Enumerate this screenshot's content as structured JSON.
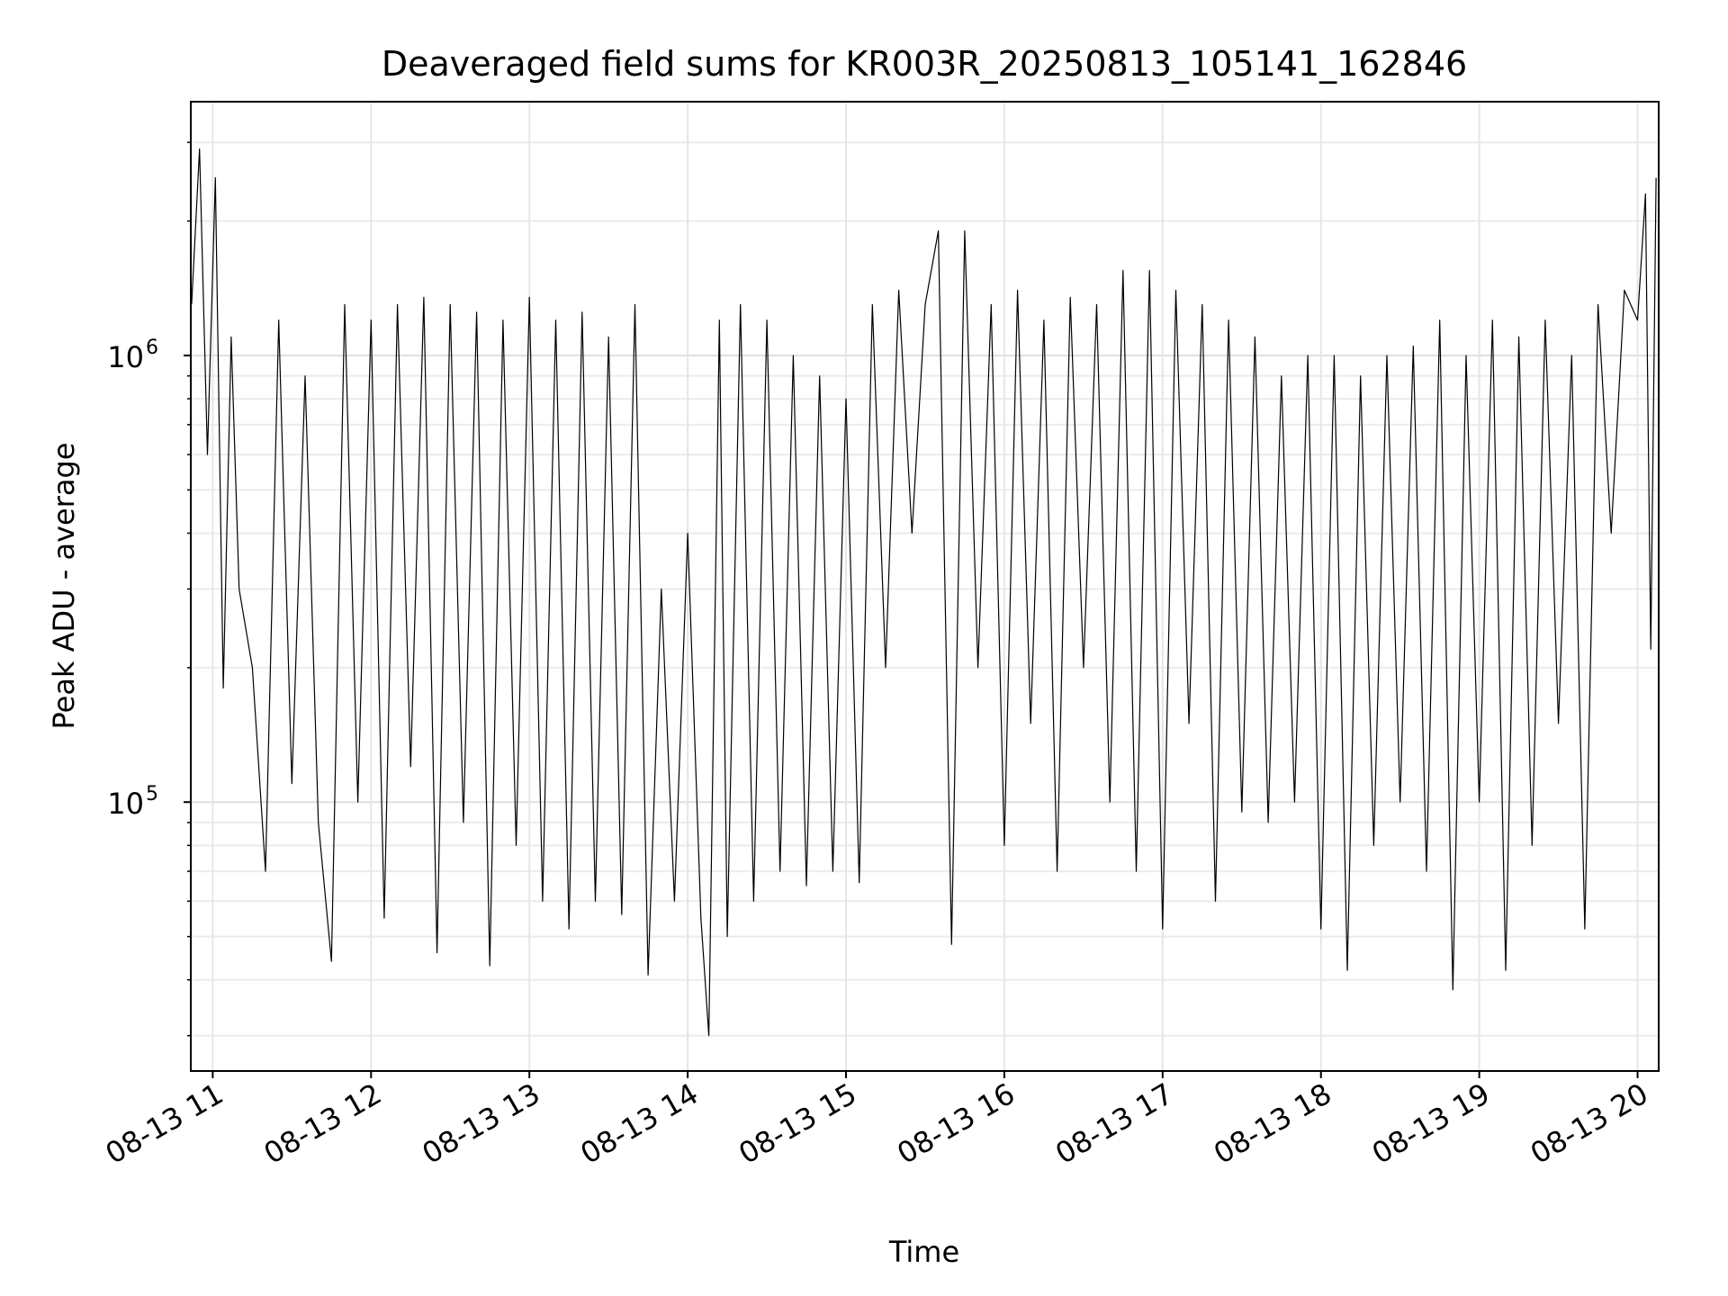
{
  "chart_data": {
    "type": "line",
    "title": "Deaveraged field sums for KR003R_20250813_105141_162846",
    "xlabel": "Time",
    "ylabel": "Peak ADU - average",
    "x_scale": "time",
    "y_scale": "log",
    "xlim": [
      "2025-08-13T10:51:41",
      "2025-08-13T20:08:00"
    ],
    "ylim": [
      25000,
      3700000
    ],
    "xticks": [
      "08-13 11",
      "08-13 12",
      "08-13 13",
      "08-13 14",
      "08-13 15",
      "08-13 16",
      "08-13 17",
      "08-13 18",
      "08-13 19",
      "08-13 20"
    ],
    "yticks": [
      {
        "label": "10",
        "exp": "5",
        "value": 100000
      },
      {
        "label": "10",
        "exp": "6",
        "value": 1000000
      }
    ],
    "grid": true,
    "line_color": "#000000",
    "series": [
      {
        "points": [
          [
            "2025-08-13T10:52:00",
            1300000
          ],
          [
            "2025-08-13T10:55:00",
            2900000
          ],
          [
            "2025-08-13T10:58:00",
            600000
          ],
          [
            "2025-08-13T11:01:00",
            2500000
          ],
          [
            "2025-08-13T11:04:00",
            180000
          ],
          [
            "2025-08-13T11:07:00",
            1100000
          ],
          [
            "2025-08-13T11:10:00",
            300000
          ],
          [
            "2025-08-13T11:15:00",
            200000
          ],
          [
            "2025-08-13T11:20:00",
            70000
          ],
          [
            "2025-08-13T11:25:00",
            1200000
          ],
          [
            "2025-08-13T11:30:00",
            110000
          ],
          [
            "2025-08-13T11:35:00",
            900000
          ],
          [
            "2025-08-13T11:40:00",
            90000
          ],
          [
            "2025-08-13T11:45:00",
            44000
          ],
          [
            "2025-08-13T11:50:00",
            1300000
          ],
          [
            "2025-08-13T11:55:00",
            100000
          ],
          [
            "2025-08-13T12:00:00",
            1200000
          ],
          [
            "2025-08-13T12:05:00",
            55000
          ],
          [
            "2025-08-13T12:10:00",
            1300000
          ],
          [
            "2025-08-13T12:15:00",
            120000
          ],
          [
            "2025-08-13T12:20:00",
            1350000
          ],
          [
            "2025-08-13T12:25:00",
            46000
          ],
          [
            "2025-08-13T12:30:00",
            1300000
          ],
          [
            "2025-08-13T12:35:00",
            90000
          ],
          [
            "2025-08-13T12:40:00",
            1250000
          ],
          [
            "2025-08-13T12:45:00",
            43000
          ],
          [
            "2025-08-13T12:50:00",
            1200000
          ],
          [
            "2025-08-13T12:55:00",
            80000
          ],
          [
            "2025-08-13T13:00:00",
            1350000
          ],
          [
            "2025-08-13T13:05:00",
            60000
          ],
          [
            "2025-08-13T13:10:00",
            1200000
          ],
          [
            "2025-08-13T13:15:00",
            52000
          ],
          [
            "2025-08-13T13:20:00",
            1250000
          ],
          [
            "2025-08-13T13:25:00",
            60000
          ],
          [
            "2025-08-13T13:30:00",
            1100000
          ],
          [
            "2025-08-13T13:35:00",
            56000
          ],
          [
            "2025-08-13T13:40:00",
            1300000
          ],
          [
            "2025-08-13T13:45:00",
            41000
          ],
          [
            "2025-08-13T13:50:00",
            300000
          ],
          [
            "2025-08-13T13:55:00",
            60000
          ],
          [
            "2025-08-13T14:00:00",
            400000
          ],
          [
            "2025-08-13T14:05:00",
            55000
          ],
          [
            "2025-08-13T14:08:00",
            30000
          ],
          [
            "2025-08-13T14:12:00",
            1200000
          ],
          [
            "2025-08-13T14:15:00",
            50000
          ],
          [
            "2025-08-13T14:20:00",
            1300000
          ],
          [
            "2025-08-13T14:25:00",
            60000
          ],
          [
            "2025-08-13T14:30:00",
            1200000
          ],
          [
            "2025-08-13T14:35:00",
            70000
          ],
          [
            "2025-08-13T14:40:00",
            1000000
          ],
          [
            "2025-08-13T14:45:00",
            65000
          ],
          [
            "2025-08-13T14:50:00",
            900000
          ],
          [
            "2025-08-13T14:55:00",
            70000
          ],
          [
            "2025-08-13T15:00:00",
            800000
          ],
          [
            "2025-08-13T15:05:00",
            66000
          ],
          [
            "2025-08-13T15:10:00",
            1300000
          ],
          [
            "2025-08-13T15:15:00",
            200000
          ],
          [
            "2025-08-13T15:20:00",
            1400000
          ],
          [
            "2025-08-13T15:25:00",
            400000
          ],
          [
            "2025-08-13T15:30:00",
            1300000
          ],
          [
            "2025-08-13T15:35:00",
            1900000
          ],
          [
            "2025-08-13T15:40:00",
            48000
          ],
          [
            "2025-08-13T15:45:00",
            1900000
          ],
          [
            "2025-08-13T15:50:00",
            200000
          ],
          [
            "2025-08-13T15:55:00",
            1300000
          ],
          [
            "2025-08-13T16:00:00",
            80000
          ],
          [
            "2025-08-13T16:05:00",
            1400000
          ],
          [
            "2025-08-13T16:10:00",
            150000
          ],
          [
            "2025-08-13T16:15:00",
            1200000
          ],
          [
            "2025-08-13T16:20:00",
            70000
          ],
          [
            "2025-08-13T16:25:00",
            1350000
          ],
          [
            "2025-08-13T16:30:00",
            200000
          ],
          [
            "2025-08-13T16:35:00",
            1300000
          ],
          [
            "2025-08-13T16:40:00",
            100000
          ],
          [
            "2025-08-13T16:45:00",
            1550000
          ],
          [
            "2025-08-13T16:50:00",
            70000
          ],
          [
            "2025-08-13T16:55:00",
            1550000
          ],
          [
            "2025-08-13T17:00:00",
            52000
          ],
          [
            "2025-08-13T17:05:00",
            1400000
          ],
          [
            "2025-08-13T17:10:00",
            150000
          ],
          [
            "2025-08-13T17:15:00",
            1300000
          ],
          [
            "2025-08-13T17:20:00",
            60000
          ],
          [
            "2025-08-13T17:25:00",
            1200000
          ],
          [
            "2025-08-13T17:30:00",
            95000
          ],
          [
            "2025-08-13T17:35:00",
            1100000
          ],
          [
            "2025-08-13T17:40:00",
            90000
          ],
          [
            "2025-08-13T17:45:00",
            900000
          ],
          [
            "2025-08-13T17:50:00",
            100000
          ],
          [
            "2025-08-13T17:55:00",
            1000000
          ],
          [
            "2025-08-13T18:00:00",
            52000
          ],
          [
            "2025-08-13T18:05:00",
            1000000
          ],
          [
            "2025-08-13T18:10:00",
            42000
          ],
          [
            "2025-08-13T18:15:00",
            900000
          ],
          [
            "2025-08-13T18:20:00",
            80000
          ],
          [
            "2025-08-13T18:25:00",
            1000000
          ],
          [
            "2025-08-13T18:30:00",
            100000
          ],
          [
            "2025-08-13T18:35:00",
            1050000
          ],
          [
            "2025-08-13T18:40:00",
            70000
          ],
          [
            "2025-08-13T18:45:00",
            1200000
          ],
          [
            "2025-08-13T18:50:00",
            38000
          ],
          [
            "2025-08-13T18:55:00",
            1000000
          ],
          [
            "2025-08-13T19:00:00",
            100000
          ],
          [
            "2025-08-13T19:05:00",
            1200000
          ],
          [
            "2025-08-13T19:10:00",
            42000
          ],
          [
            "2025-08-13T19:15:00",
            1100000
          ],
          [
            "2025-08-13T19:20:00",
            80000
          ],
          [
            "2025-08-13T19:25:00",
            1200000
          ],
          [
            "2025-08-13T19:30:00",
            150000
          ],
          [
            "2025-08-13T19:35:00",
            1000000
          ],
          [
            "2025-08-13T19:40:00",
            52000
          ],
          [
            "2025-08-13T19:45:00",
            1300000
          ],
          [
            "2025-08-13T19:50:00",
            400000
          ],
          [
            "2025-08-13T19:55:00",
            1400000
          ],
          [
            "2025-08-13T20:00:00",
            1200000
          ],
          [
            "2025-08-13T20:03:00",
            2300000
          ],
          [
            "2025-08-13T20:05:00",
            220000
          ],
          [
            "2025-08-13T20:07:00",
            2500000
          ]
        ]
      }
    ]
  }
}
